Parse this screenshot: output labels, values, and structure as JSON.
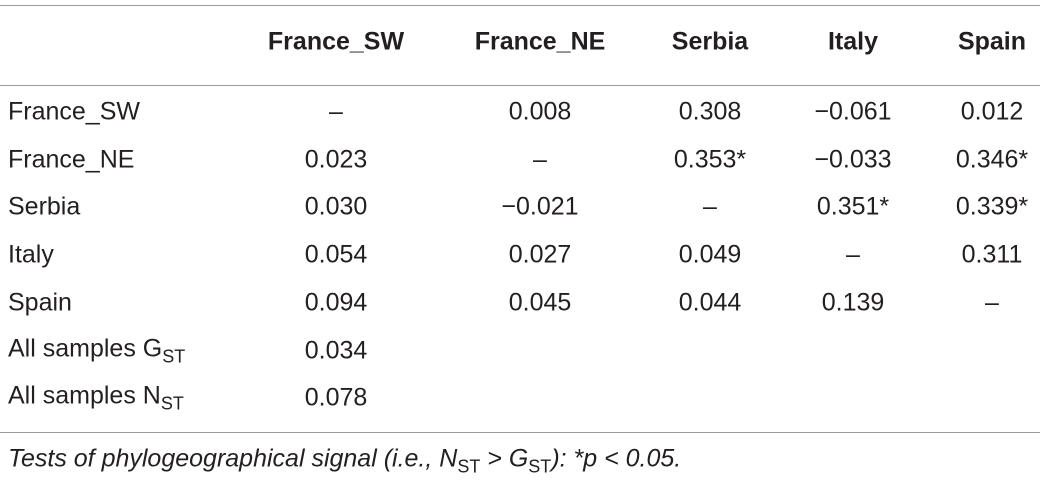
{
  "table": {
    "header": [
      "France_SW",
      "France_NE",
      "Serbia",
      "Italy",
      "Spain"
    ],
    "rows": [
      {
        "label": {
          "text": "France_SW"
        },
        "cells": [
          "–",
          "0.008",
          "0.308",
          "−0.061",
          "0.012"
        ]
      },
      {
        "label": {
          "text": "France_NE"
        },
        "cells": [
          "0.023",
          "–",
          "0.353*",
          "−0.033",
          "0.346*"
        ]
      },
      {
        "label": {
          "text": "Serbia"
        },
        "cells": [
          "0.030",
          "−0.021",
          "–",
          "0.351*",
          "0.339*"
        ]
      },
      {
        "label": {
          "text": "Italy"
        },
        "cells": [
          "0.054",
          "0.027",
          "0.049",
          "–",
          "0.311"
        ]
      },
      {
        "label": {
          "text": "Spain"
        },
        "cells": [
          "0.094",
          "0.045",
          "0.044",
          "0.139",
          "–"
        ]
      },
      {
        "label": {
          "text": "All samples G",
          "sub": "ST"
        },
        "cells": [
          "0.034"
        ]
      },
      {
        "label": {
          "text": "All samples N",
          "sub": "ST"
        },
        "cells": [
          "0.078"
        ]
      }
    ],
    "footnote": [
      {
        "text": "Tests of phylogeographical signal (i.e., N"
      },
      {
        "sub": "ST"
      },
      {
        "text": " > G"
      },
      {
        "sub": "ST"
      },
      {
        "text": "): *p < 0.05."
      }
    ]
  }
}
